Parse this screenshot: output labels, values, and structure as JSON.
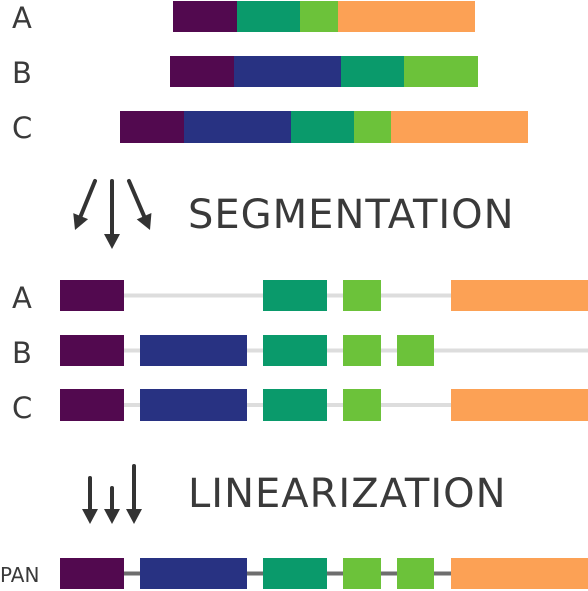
{
  "colors": {
    "purple": "#52094f",
    "navy": "#283282",
    "teal": "#0a9a6b",
    "lime": "#6cc23a",
    "orange": "#fca155",
    "connector": "#dddddd",
    "pan_connector": "#6e6e6e",
    "arrow": "#333333",
    "text": "#3a3a3a"
  },
  "labels": {
    "segmentation": "SEGMENTATION",
    "linearization": "LINEARIZATION",
    "pan": "PAN"
  },
  "raw_genomes": [
    {
      "id": "A",
      "blocks": [
        "purple",
        "teal",
        "lime",
        "orange"
      ]
    },
    {
      "id": "B",
      "blocks": [
        "purple",
        "navy",
        "teal",
        "lime"
      ]
    },
    {
      "id": "C",
      "blocks": [
        "purple",
        "navy",
        "teal",
        "lime",
        "orange"
      ]
    }
  ],
  "segment_columns": [
    "purple",
    "navy",
    "teal",
    "lime",
    "lime",
    "orange"
  ],
  "segmented_genomes": [
    {
      "id": "A",
      "segments": [
        "purple",
        "teal",
        "lime",
        "orange"
      ]
    },
    {
      "id": "B",
      "segments": [
        "purple",
        "navy",
        "teal",
        "lime",
        "lime"
      ]
    },
    {
      "id": "C",
      "segments": [
        "purple",
        "navy",
        "teal",
        "lime",
        "orange"
      ]
    }
  ],
  "pan_genome": {
    "id": "PAN",
    "segments": [
      "purple",
      "navy",
      "teal",
      "lime",
      "lime",
      "orange"
    ]
  }
}
